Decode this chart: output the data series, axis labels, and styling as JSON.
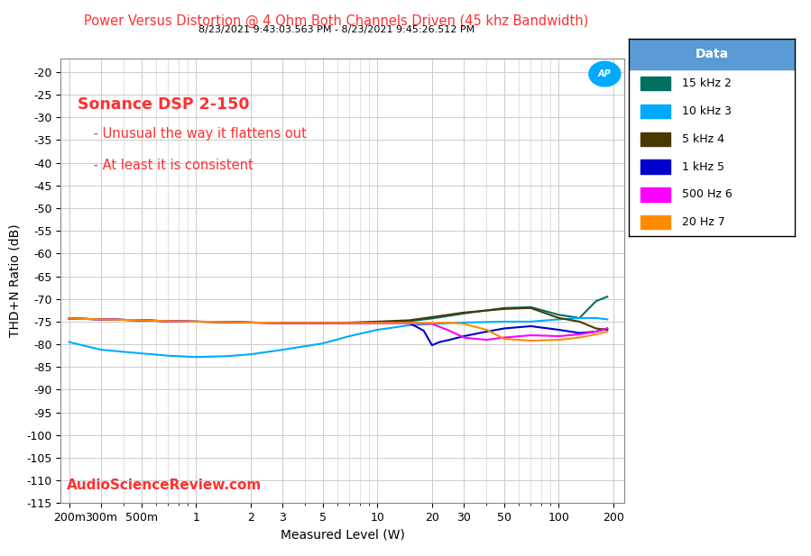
{
  "title": "Power Versus Distortion @ 4 Ohm Both Channels Driven (45 khz Bandwidth)",
  "subtitle": "8/23/2021 9:43:03.563 PM - 8/23/2021 9:45:26.512 PM",
  "xlabel": "Measured Level (W)",
  "ylabel": "THD+N Ratio (dB)",
  "title_color": "#FF3030",
  "subtitle_color": "#000000",
  "annotation1": "Sonance DSP 2-150",
  "annotation2": " - Unusual the way it flattens out",
  "annotation3": " - At least it is consistent",
  "watermark": "AudioScienceReview.com",
  "ylim": [
    -115,
    -17
  ],
  "yticks": [
    -20,
    -25,
    -30,
    -35,
    -40,
    -45,
    -50,
    -55,
    -60,
    -65,
    -70,
    -75,
    -80,
    -85,
    -90,
    -95,
    -100,
    -105,
    -110,
    -115
  ],
  "xlim_log": [
    0.18,
    230
  ],
  "background_color": "#FFFFFF",
  "grid_color": "#CCCCCC",
  "series": [
    {
      "label": "15 kHz 2",
      "color": "#007060",
      "x": [
        0.2,
        0.3,
        0.5,
        0.7,
        1.0,
        1.5,
        2.0,
        3.0,
        5.0,
        7.0,
        10.0,
        15.0,
        20.0,
        30.0,
        50.0,
        70.0,
        100.0,
        130.0,
        160.0,
        185.0
      ],
      "y": [
        -74.3,
        -74.5,
        -74.7,
        -74.9,
        -75.0,
        -75.1,
        -75.2,
        -75.3,
        -75.3,
        -75.3,
        -75.2,
        -74.9,
        -74.3,
        -73.2,
        -72.0,
        -71.8,
        -73.5,
        -74.2,
        -70.5,
        -69.5
      ]
    },
    {
      "label": "10 kHz 3",
      "color": "#00AAFF",
      "x": [
        0.2,
        0.3,
        0.5,
        0.7,
        1.0,
        1.5,
        2.0,
        3.0,
        5.0,
        7.0,
        10.0,
        15.0,
        20.0,
        30.0,
        50.0,
        70.0,
        100.0,
        130.0,
        160.0,
        185.0
      ],
      "y": [
        -79.5,
        -81.2,
        -82.0,
        -82.5,
        -82.8,
        -82.6,
        -82.2,
        -81.2,
        -79.8,
        -78.2,
        -76.8,
        -75.8,
        -75.5,
        -75.2,
        -75.0,
        -75.0,
        -74.5,
        -74.2,
        -74.2,
        -74.5
      ]
    },
    {
      "label": "5 kHz 4",
      "color": "#4A3800",
      "x": [
        0.2,
        0.3,
        0.5,
        0.7,
        1.0,
        1.5,
        2.0,
        3.0,
        5.0,
        7.0,
        10.0,
        15.0,
        20.0,
        30.0,
        50.0,
        70.0,
        100.0,
        130.0,
        160.0,
        185.0
      ],
      "y": [
        -74.3,
        -74.5,
        -74.7,
        -74.9,
        -75.0,
        -75.1,
        -75.2,
        -75.3,
        -75.3,
        -75.2,
        -75.0,
        -74.7,
        -74.0,
        -73.0,
        -72.2,
        -72.0,
        -74.2,
        -75.0,
        -76.5,
        -76.8
      ]
    },
    {
      "label": "1 kHz 5",
      "color": "#0000CC",
      "x": [
        0.2,
        0.3,
        0.5,
        0.7,
        1.0,
        1.5,
        2.0,
        3.0,
        5.0,
        7.0,
        10.0,
        15.0,
        18.0,
        20.0,
        22.0,
        25.0,
        30.0,
        40.0,
        50.0,
        70.0,
        100.0,
        130.0,
        160.0,
        185.0
      ],
      "y": [
        -74.3,
        -74.5,
        -74.7,
        -74.9,
        -75.0,
        -75.1,
        -75.2,
        -75.3,
        -75.3,
        -75.3,
        -75.3,
        -75.3,
        -77.0,
        -80.2,
        -79.5,
        -79.0,
        -78.2,
        -77.2,
        -76.5,
        -76.0,
        -76.8,
        -77.5,
        -77.2,
        -76.5
      ]
    },
    {
      "label": "500 Hz 6",
      "color": "#FF00FF",
      "x": [
        0.2,
        0.3,
        0.5,
        0.7,
        1.0,
        1.5,
        2.0,
        3.0,
        5.0,
        7.0,
        10.0,
        15.0,
        20.0,
        25.0,
        30.0,
        35.0,
        40.0,
        50.0,
        70.0,
        100.0,
        130.0,
        160.0,
        185.0
      ],
      "y": [
        -74.3,
        -74.5,
        -74.7,
        -74.9,
        -75.0,
        -75.1,
        -75.2,
        -75.3,
        -75.3,
        -75.3,
        -75.3,
        -75.3,
        -75.5,
        -77.0,
        -78.5,
        -78.8,
        -79.0,
        -78.5,
        -78.0,
        -78.2,
        -77.8,
        -77.2,
        -76.5
      ]
    },
    {
      "label": "20 Hz 7",
      "color": "#FF8C00",
      "x": [
        0.2,
        0.3,
        0.5,
        0.7,
        1.0,
        1.5,
        2.0,
        3.0,
        5.0,
        7.0,
        10.0,
        15.0,
        20.0,
        25.0,
        30.0,
        40.0,
        50.0,
        70.0,
        100.0,
        130.0,
        160.0,
        185.0
      ],
      "y": [
        -74.3,
        -74.5,
        -74.7,
        -74.9,
        -75.0,
        -75.1,
        -75.2,
        -75.3,
        -75.3,
        -75.3,
        -75.3,
        -75.3,
        -75.3,
        -75.2,
        -75.5,
        -76.8,
        -78.8,
        -79.2,
        -79.0,
        -78.5,
        -77.8,
        -77.2
      ]
    }
  ],
  "legend_title": "Data",
  "legend_title_bg": "#5B9BD5",
  "ap_logo_color": "#00AAFF",
  "xtick_labels": [
    "200m",
    "300m",
    "500m",
    "1",
    "2",
    "3",
    "5",
    "10",
    "20",
    "30",
    "50",
    "100",
    "200"
  ],
  "xtick_values": [
    0.2,
    0.3,
    0.5,
    1.0,
    2.0,
    3.0,
    5.0,
    10.0,
    20.0,
    30.0,
    50.0,
    100.0,
    200.0
  ]
}
